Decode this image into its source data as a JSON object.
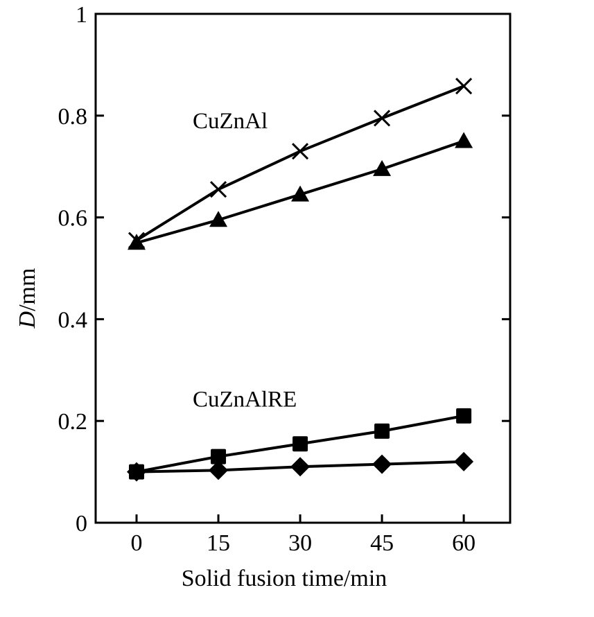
{
  "chart_data": {
    "type": "line",
    "title": "",
    "xlabel": "Solid fusion time/min",
    "ylabel_italic": "D",
    "ylabel_rest": "/mm",
    "x": [
      0,
      15,
      30,
      45,
      60
    ],
    "xlim": [
      -7.5,
      68.5
    ],
    "ylim": [
      0,
      1
    ],
    "x_ticks": [
      "0",
      "15",
      "30",
      "45",
      "60"
    ],
    "y_ticks": [
      {
        "value": 0,
        "label": "0"
      },
      {
        "value": 0.2,
        "label": "0.2"
      },
      {
        "value": 0.4,
        "label": "0.4"
      },
      {
        "value": 0.6,
        "label": "0.6"
      },
      {
        "value": 0.8,
        "label": "0.8"
      },
      {
        "value": 1,
        "label": "1"
      }
    ],
    "grid": false,
    "legend": "none",
    "series": [
      {
        "marker": "cross",
        "values": [
          0.555,
          0.655,
          0.73,
          0.795,
          0.858
        ]
      },
      {
        "marker": "triangle",
        "values": [
          0.55,
          0.595,
          0.645,
          0.695,
          0.75
        ]
      },
      {
        "marker": "square",
        "values": [
          0.1,
          0.13,
          0.155,
          0.18,
          0.21
        ]
      },
      {
        "marker": "diamond",
        "values": [
          0.1,
          0.103,
          0.11,
          0.115,
          0.12
        ]
      }
    ],
    "annotations": [
      {
        "text": "CuZnAl",
        "x": 0.855,
        "y": 0.775
      },
      {
        "text": "CuZnAlRE",
        "x": 0.855,
        "y": 0.228
      }
    ]
  }
}
